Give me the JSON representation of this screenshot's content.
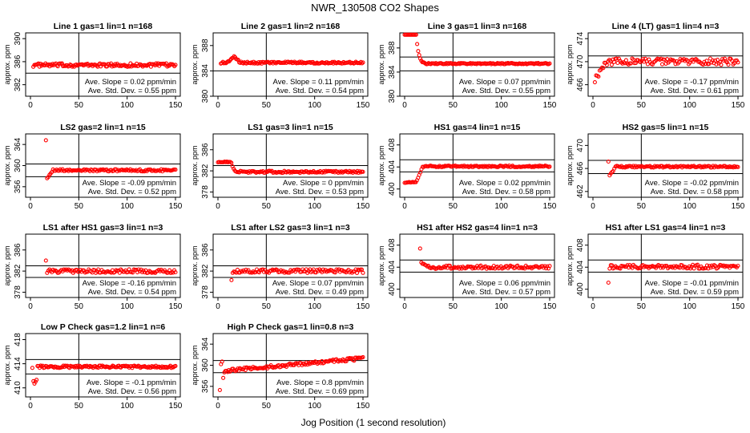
{
  "figure": {
    "title": "NWR_130508  CO2 Shapes",
    "xlabel": "Jog Position (1 second resolution)"
  },
  "chart_data": [
    {
      "type": "scatter",
      "title": "Line 1 gas=1 lin=1 n=168",
      "ylabel": "approx. ppm",
      "xlim": [
        0,
        150
      ],
      "ylim": [
        380,
        391
      ],
      "yticks": [
        382,
        386,
        390
      ],
      "xticks": [
        0,
        50,
        100,
        150
      ],
      "hlines": [
        384
      ],
      "vline": 50,
      "slope_text": "Ave. Slope = 0.02  ppm/min",
      "sd_text": "Ave. Std. Dev. = 0.55  ppm",
      "shape": "flat",
      "base": 385.4,
      "noise": 0.3,
      "start": 3,
      "n": 140
    },
    {
      "type": "scatter",
      "title": "Line 2 gas=1 lin=2 n=168",
      "ylabel": "approx. ppm",
      "xlim": [
        0,
        150
      ],
      "ylim": [
        380,
        390
      ],
      "yticks": [
        380,
        384,
        388
      ],
      "xticks": [
        0,
        50,
        100,
        150
      ],
      "hlines": [
        384
      ],
      "vline": 50,
      "slope_text": "Ave. Slope = 0.11  ppm/min",
      "sd_text": "Ave. Std. Dev. = 0.54  ppm",
      "shape": "bumpflat",
      "base": 385.3,
      "bump": 0.9,
      "noise": 0.15,
      "start": 3,
      "n": 140
    },
    {
      "type": "scatter",
      "title": "Line 3 gas=1 lin=3 n=168",
      "ylabel": "approx. ppm",
      "xlim": [
        0,
        150
      ],
      "ylim": [
        380,
        390.5
      ],
      "yticks": [
        380,
        384,
        388
      ],
      "xticks": [
        0,
        50,
        100,
        150
      ],
      "hlines": [
        386.5,
        384.2
      ],
      "vline": 50,
      "slope_text": "Ave. Slope = 0.07  ppm/min",
      "sd_text": "Ave. Std. Dev. = 0.55  ppm",
      "shape": "decay",
      "base": 385.4,
      "from": 390.3,
      "flatTo": 12,
      "decayTo": 22,
      "noise": 0.1,
      "start": 0,
      "n": 140
    },
    {
      "type": "scatter",
      "title": "Line 4 (LT) gas=1 lin=4 n=3",
      "ylabel": "approx. ppm",
      "xlim": [
        0,
        150
      ],
      "ylim": [
        464,
        475
      ],
      "yticks": [
        466,
        470,
        474
      ],
      "xticks": [
        0,
        50,
        100,
        150
      ],
      "hlines": [
        471,
        469
      ],
      "vline": 50,
      "slope_text": "Ave. Slope = -0.17  ppm/min",
      "sd_text": "Ave. Std. Dev. = 0.61  ppm",
      "shape": "rise",
      "base": 470,
      "from": 466.5,
      "riseTo": 15,
      "noise": 0.55,
      "start": 2,
      "n": 120
    },
    {
      "type": "scatter",
      "title": "LS2 gas=2 lin=1 n=15",
      "ylabel": "approx. ppm",
      "xlim": [
        0,
        150
      ],
      "ylim": [
        354,
        366
      ],
      "yticks": [
        356,
        360,
        364
      ],
      "xticks": [
        0,
        50,
        100,
        150
      ],
      "hlines": [
        360.3,
        357.9
      ],
      "vline": 50,
      "slope_text": "Ave. Slope = -0.09  ppm/min",
      "sd_text": "Ave. Std. Dev. = 0.52  ppm",
      "shape": "spikedip",
      "base": 359.1,
      "spike": 364.8,
      "dip": 357.8,
      "noise": 0.2,
      "start": 16,
      "n": 110
    },
    {
      "type": "scatter",
      "title": "LS1 gas=3 lin=1 n=15",
      "ylabel": "approx. ppm",
      "xlim": [
        0,
        150
      ],
      "ylim": [
        377,
        389
      ],
      "yticks": [
        378,
        382,
        386
      ],
      "xticks": [
        0,
        50,
        100,
        150
      ],
      "hlines": [
        383,
        380.8
      ],
      "vline": 50,
      "slope_text": "Ave. Slope = 0  ppm/min",
      "sd_text": "Ave. Std. Dev. = 0.53  ppm",
      "shape": "stepdown",
      "base": 381.8,
      "from": 383.7,
      "flatTo": 13,
      "decayTo": 18,
      "noise": 0.2,
      "start": 0,
      "n": 130
    },
    {
      "type": "scatter",
      "title": "HS1 gas=4 lin=1 n=15",
      "ylabel": "approx. ppm",
      "xlim": [
        0,
        150
      ],
      "ylim": [
        398.5,
        410
      ],
      "yticks": [
        400,
        404,
        408
      ],
      "xticks": [
        0,
        50,
        100,
        150
      ],
      "hlines": [
        405.3,
        403.1
      ],
      "vline": 50,
      "slope_text": "Ave. Slope = 0.02  ppm/min",
      "sd_text": "Ave. Std. Dev. = 0.58  ppm",
      "shape": "stepup",
      "base": 404.1,
      "from": 401.2,
      "flatTo": 12,
      "riseTo": 19,
      "noise": 0.15,
      "start": 0,
      "n": 130
    },
    {
      "type": "scatter",
      "title": "HS2 gas=5 lin=1 n=15",
      "ylabel": "approx. ppm",
      "xlim": [
        0,
        150
      ],
      "ylim": [
        461,
        472
      ],
      "yticks": [
        462,
        466,
        470
      ],
      "xticks": [
        0,
        50,
        100,
        150
      ],
      "hlines": [
        467.4,
        465.1
      ],
      "vline": 50,
      "slope_text": "Ave. Slope = -0.02  ppm/min",
      "sd_text": "Ave. Std. Dev. = 0.58  ppm",
      "shape": "spikedip",
      "base": 466.3,
      "spike": 467.2,
      "dip": 465,
      "noise": 0.15,
      "start": 16,
      "n": 110
    },
    {
      "type": "scatter",
      "title": "LS1 after HS1 gas=3 lin=1 n=3",
      "ylabel": "approx. ppm",
      "xlim": [
        0,
        150
      ],
      "ylim": [
        377,
        389
      ],
      "yticks": [
        378,
        382,
        386
      ],
      "xticks": [
        0,
        50,
        100,
        150
      ],
      "hlines": [
        383,
        380.8
      ],
      "vline": 50,
      "slope_text": "Ave. Slope = -0.16  ppm/min",
      "sd_text": "Ave. Std. Dev. = 0.54  ppm",
      "shape": "spikeflat",
      "base": 382,
      "spike": 384,
      "noise": 0.35,
      "start": 16,
      "n": 110
    },
    {
      "type": "scatter",
      "title": "LS1 after LS2 gas=3 lin=1 n=3",
      "ylabel": "approx. ppm",
      "xlim": [
        0,
        150
      ],
      "ylim": [
        377,
        389
      ],
      "yticks": [
        378,
        382,
        386
      ],
      "xticks": [
        0,
        50,
        100,
        150
      ],
      "hlines": [
        383,
        380.8
      ],
      "vline": 50,
      "slope_text": "Ave. Slope = 0.07  ppm/min",
      "sd_text": "Ave. Std. Dev. = 0.49  ppm",
      "shape": "lowstart",
      "base": 382,
      "low": 380.3,
      "noise": 0.35,
      "start": 14,
      "n": 110
    },
    {
      "type": "scatter",
      "title": "HS1 after HS2 gas=4 lin=1 n=3",
      "ylabel": "approx. ppm",
      "xlim": [
        0,
        150
      ],
      "ylim": [
        398.5,
        410
      ],
      "yticks": [
        400,
        404,
        408
      ],
      "xticks": [
        0,
        50,
        100,
        150
      ],
      "hlines": [
        405.3,
        403.1
      ],
      "vline": 50,
      "slope_text": "Ave. Slope = 0.06  ppm/min",
      "sd_text": "Ave. Std. Dev. = 0.57  ppm",
      "shape": "spikedecay",
      "base": 404,
      "spike": 407.4,
      "noise": 0.3,
      "start": 16,
      "n": 110
    },
    {
      "type": "scatter",
      "title": "HS1 after LS1 gas=4 lin=1 n=3",
      "ylabel": "approx. ppm",
      "xlim": [
        0,
        150
      ],
      "ylim": [
        398.5,
        410
      ],
      "yticks": [
        400,
        404,
        408
      ],
      "xticks": [
        0,
        50,
        100,
        150
      ],
      "hlines": [
        405.3,
        403.1
      ],
      "vline": 50,
      "slope_text": "Ave. Slope = -0.01  ppm/min",
      "sd_text": "Ave. Std. Dev. = 0.59  ppm",
      "shape": "lowstart",
      "base": 404.1,
      "low": 401.2,
      "noise": 0.35,
      "start": 16,
      "n": 110
    },
    {
      "type": "scatter",
      "title": "Low P Check gas=1.2 lin=1 n=6",
      "ylabel": "approx. ppm",
      "xlim": [
        0,
        150
      ],
      "ylim": [
        408.5,
        419
      ],
      "yticks": [
        410,
        414,
        418
      ],
      "xticks": [
        0,
        50,
        100,
        150
      ],
      "hlines": [
        414.7,
        412.3
      ],
      "vline": 50,
      "slope_text": "Ave. Slope = -0.1  ppm/min",
      "sd_text": "Ave. Std. Dev. = 0.56  ppm",
      "shape": "dipstart",
      "base": 413.5,
      "low": 411,
      "noise": 0.2,
      "start": 2,
      "n": 140
    },
    {
      "type": "scatter",
      "title": "High P Check gas=1 lin=0.8 n=3",
      "ylabel": "approx. ppm",
      "xlim": [
        0,
        150
      ],
      "ylim": [
        354,
        366
      ],
      "yticks": [
        356,
        360,
        364
      ],
      "xticks": [
        0,
        50,
        100,
        150
      ],
      "hlines": [
        360.9,
        358.6
      ],
      "vline": 50,
      "slope_text": "Ave. Slope = 0.8  ppm/min",
      "sd_text": "Ave. Std. Dev. = 0.69  ppm",
      "shape": "scatterrise",
      "base": 358.6,
      "end": 360.9,
      "noise": 0.3,
      "start": 2,
      "n": 130
    }
  ],
  "colors": {
    "points": "#ff0000",
    "axis": "#000000"
  }
}
